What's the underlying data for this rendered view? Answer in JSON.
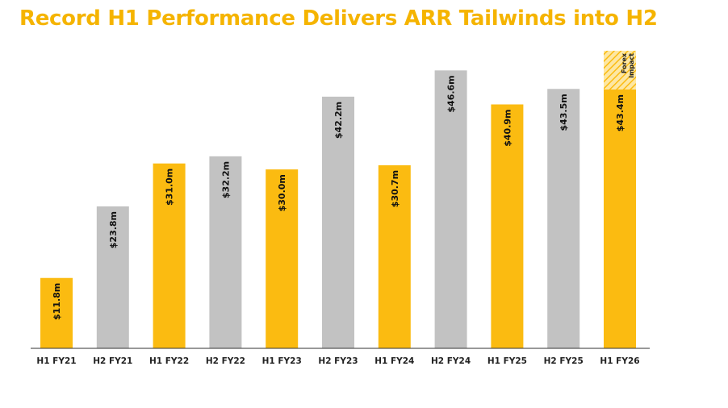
{
  "title": "Record H1 Performance Delivers ARR Tailwinds into H2",
  "colors": {
    "title": "#f5b400",
    "h1_bar": "#fbbb11",
    "h2_bar": "#c2c2c2",
    "axis": "#333333",
    "hatch_light": "#fde7a3"
  },
  "chart_data": {
    "type": "bar",
    "title": "Record H1 Performance Delivers ARR Tailwinds into H2",
    "xlabel": "",
    "ylabel": "",
    "categories": [
      "H1 FY21",
      "H2 FY21",
      "H1 FY22",
      "H2 FY22",
      "H1 FY23",
      "H2 FY23",
      "H1 FY24",
      "H2 FY24",
      "H1 FY25",
      "H2 FY25",
      "H1 FY26"
    ],
    "values": [
      11.8,
      23.8,
      31.0,
      32.2,
      30.0,
      42.2,
      30.7,
      46.6,
      40.9,
      43.5,
      43.4
    ],
    "value_labels": [
      "$11.8m",
      "$23.8m",
      "$31.0m",
      "$32.2m",
      "$30.0m",
      "$42.2m",
      "$30.7m",
      "$46.6m",
      "$40.9m",
      "$43.5m",
      "$43.4m"
    ],
    "bar_kinds": [
      "H1",
      "H2",
      "H1",
      "H2",
      "H1",
      "H2",
      "H1",
      "H2",
      "H1",
      "H2",
      "H1"
    ],
    "stacked_overlay": {
      "category": "H1 FY26",
      "label": "Forex impact",
      "value": 6.5,
      "pattern": "hatched"
    },
    "ylim": [
      0,
      53
    ],
    "grid": false,
    "legend": "none"
  }
}
